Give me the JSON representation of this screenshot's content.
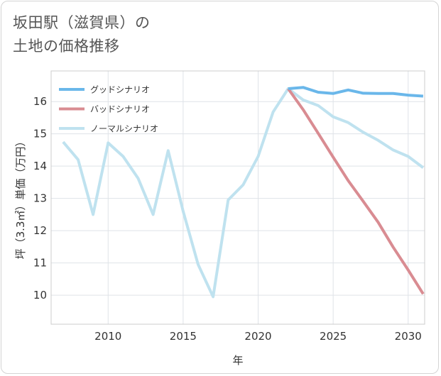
{
  "title": {
    "line1": "坂田駅（滋賀県）の",
    "line2": "土地の価格推移"
  },
  "chart_data": {
    "type": "line",
    "xlabel": "年",
    "ylabel": "坪（3.3㎡）単価（万円）",
    "xlim": [
      2006.2,
      2031.1
    ],
    "ylim": [
      9.1,
      16.95
    ],
    "xticks": [
      2010,
      2015,
      2020,
      2025,
      2030
    ],
    "yticks": [
      10,
      11,
      12,
      13,
      14,
      15,
      16
    ],
    "legend_position": "top-left",
    "series": [
      {
        "name": "グッドシナリオ",
        "color": "#6ab7ea",
        "x": [
          2022,
          2023,
          2024,
          2025,
          2026,
          2027,
          2028,
          2029,
          2030,
          2031
        ],
        "y": [
          16.4,
          16.44,
          16.29,
          16.25,
          16.36,
          16.26,
          16.25,
          16.25,
          16.2,
          16.17
        ]
      },
      {
        "name": "バッドシナリオ",
        "color": "#d98c92",
        "x": [
          2022,
          2023,
          2024,
          2025,
          2026,
          2027,
          2028,
          2029,
          2030,
          2031
        ],
        "y": [
          16.4,
          15.75,
          15.02,
          14.28,
          13.55,
          12.91,
          12.26,
          11.49,
          10.78,
          10.04
        ]
      },
      {
        "name": "ノーマルシナリオ",
        "color": "#bfe2ef",
        "x": [
          2007,
          2008,
          2009,
          2010,
          2011,
          2012,
          2013,
          2014,
          2015,
          2016,
          2017,
          2018,
          2019,
          2020,
          2021,
          2022,
          2023,
          2024,
          2025,
          2026,
          2027,
          2028,
          2029,
          2030,
          2031
        ],
        "y": [
          14.75,
          14.2,
          12.5,
          14.72,
          14.3,
          13.62,
          12.5,
          14.48,
          12.6,
          10.95,
          9.95,
          12.95,
          13.42,
          14.3,
          15.68,
          16.4,
          16.05,
          15.88,
          15.53,
          15.35,
          15.05,
          14.8,
          14.5,
          14.3,
          13.95
        ]
      }
    ]
  }
}
